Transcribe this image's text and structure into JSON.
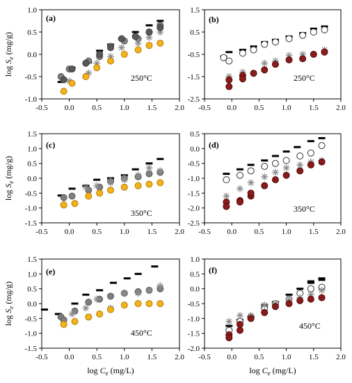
{
  "chart_data": [
    {
      "panel": "(a)",
      "type": "scatter",
      "annotation": "250°C",
      "xlim": [
        -0.5,
        2.0
      ],
      "ylim": [
        -1.0,
        1.0
      ],
      "xticks": [
        "-0.5",
        "0.0",
        "0.5",
        "1.0",
        "1.5",
        "2.0"
      ],
      "yticks": [
        "-1.0",
        "-0.5",
        "0.0",
        "0.5",
        "1.0"
      ],
      "xlabel": "",
      "ylabel": "log Se (mg/g)",
      "series": [
        {
          "marker": "dash",
          "x": [
            -0.15,
            0.05,
            0.35,
            0.55,
            0.75,
            0.95,
            1.2,
            1.45,
            1.65
          ],
          "y": [
            -0.62,
            -0.3,
            -0.18,
            0.08,
            0.22,
            0.35,
            0.5,
            0.65,
            0.75
          ]
        },
        {
          "marker": "gray",
          "x": [
            -0.15,
            0.0,
            0.35,
            0.55,
            0.75,
            1.0,
            1.25,
            1.45,
            1.65
          ],
          "y": [
            -0.5,
            -0.33,
            -0.15,
            -0.05,
            0.18,
            0.3,
            0.35,
            0.5,
            0.65
          ]
        },
        {
          "marker": "star",
          "x": [
            0.0,
            0.35,
            0.5,
            0.75,
            0.95,
            1.25,
            1.45,
            1.65
          ],
          "y": [
            -0.6,
            -0.42,
            -0.2,
            -0.05,
            0.15,
            0.25,
            0.38,
            0.5
          ]
        },
        {
          "marker": "dark",
          "x": [
            -0.1,
            0.05,
            0.3,
            0.55,
            0.75,
            0.95,
            1.2,
            1.45,
            1.65
          ],
          "y": [
            -0.57,
            -0.33,
            -0.2,
            0.0,
            0.15,
            0.35,
            0.4,
            0.5,
            0.6
          ]
        },
        {
          "marker": "yellow",
          "x": [
            -0.1,
            0.05,
            0.3,
            0.5,
            0.75,
            1.0,
            1.25,
            1.45,
            1.65
          ],
          "y": [
            -0.83,
            -0.65,
            -0.5,
            -0.3,
            -0.15,
            0.0,
            0.1,
            0.2,
            0.25
          ]
        }
      ]
    },
    {
      "panel": "(b)",
      "type": "scatter",
      "annotation": "250°C",
      "xlim": [
        -0.5,
        2.0
      ],
      "ylim": [
        -2.5,
        1.5
      ],
      "xticks": [
        "-0.5",
        "0.0",
        "0.5",
        "1.0",
        "1.5",
        "2.0"
      ],
      "yticks": [
        "-2.5",
        "-1.5",
        "-0.5",
        "0.5",
        "1.5"
      ],
      "xlabel": "",
      "ylabel": "",
      "series": [
        {
          "marker": "dash",
          "x": [
            -0.15,
            -0.05,
            0.2,
            0.4,
            0.6,
            0.8,
            1.05,
            1.3,
            1.5,
            1.7
          ],
          "y": [
            -0.6,
            -0.4,
            -0.3,
            -0.15,
            0.05,
            0.15,
            0.3,
            0.45,
            0.65,
            0.75
          ]
        },
        {
          "marker": "open",
          "x": [
            -0.15,
            -0.05,
            0.2,
            0.4,
            0.6,
            0.8,
            1.05,
            1.3,
            1.5,
            1.7
          ],
          "y": [
            -0.65,
            -0.8,
            -0.45,
            -0.3,
            -0.05,
            0.05,
            0.2,
            0.35,
            0.5,
            0.6
          ]
        },
        {
          "marker": "star",
          "x": [
            -0.05,
            0.2,
            0.6,
            0.8,
            1.05,
            1.3,
            1.7
          ],
          "y": [
            -1.5,
            -1.3,
            -0.9,
            -0.8,
            -0.55,
            -0.5,
            -0.3
          ]
        },
        {
          "marker": "red",
          "x": [
            -0.05,
            -0.05,
            0.2,
            0.2,
            0.4,
            0.6,
            0.8,
            1.05,
            1.3,
            1.5,
            1.7
          ],
          "y": [
            -1.65,
            -1.95,
            -1.45,
            -1.6,
            -1.35,
            -1.2,
            -0.95,
            -0.75,
            -0.7,
            -0.5,
            -0.4
          ]
        }
      ]
    },
    {
      "panel": "(c)",
      "type": "scatter",
      "annotation": "350°C",
      "xlim": [
        -0.5,
        2.0
      ],
      "ylim": [
        -1.5,
        1.5
      ],
      "xticks": [
        "-0.5",
        "0.0",
        "0.5",
        "1.0",
        "1.5",
        "2.0"
      ],
      "yticks": [
        "-1.5",
        "-1.0",
        "-0.5",
        "0.0",
        "0.5",
        "1.0",
        "1.5"
      ],
      "xlabel": "",
      "ylabel": "log Se (mg/g)",
      "series": [
        {
          "marker": "dash",
          "x": [
            -0.15,
            0.05,
            0.3,
            0.5,
            0.75,
            1.0,
            1.2,
            1.45,
            1.65
          ],
          "y": [
            -0.58,
            -0.35,
            -0.25,
            -0.05,
            0.0,
            0.1,
            0.3,
            0.5,
            0.65
          ]
        },
        {
          "marker": "gray",
          "x": [
            -0.1,
            0.05,
            0.35,
            0.55,
            0.75,
            1.0,
            1.25,
            1.45,
            1.65
          ],
          "y": [
            -0.65,
            -0.6,
            -0.4,
            -0.3,
            -0.1,
            0.0,
            0.05,
            0.15,
            0.2
          ]
        },
        {
          "marker": "star",
          "x": [
            -0.1,
            0.3,
            0.5,
            0.75,
            1.0,
            1.25,
            1.45,
            1.65
          ],
          "y": [
            -0.9,
            -0.3,
            -0.25,
            -0.15,
            -0.05,
            0.1,
            0.35,
            0.25
          ]
        },
        {
          "marker": "yellow",
          "x": [
            -0.1,
            0.1,
            0.35,
            0.55,
            0.75,
            1.0,
            1.25,
            1.45,
            1.65
          ],
          "y": [
            -0.9,
            -0.85,
            -0.6,
            -0.5,
            -0.4,
            -0.3,
            -0.25,
            -0.2,
            -0.15
          ]
        }
      ]
    },
    {
      "panel": "(d)",
      "type": "scatter",
      "annotation": "350°C",
      "xlim": [
        -0.5,
        2.0
      ],
      "ylim": [
        -2.5,
        0.5
      ],
      "xticks": [
        "-0.5",
        "0.0",
        "0.5",
        "1.0",
        "1.5",
        "2.0"
      ],
      "yticks": [
        "-2.5",
        "-2.0",
        "-1.5",
        "-1.0",
        "-0.5",
        "0.0",
        "0.5"
      ],
      "xlabel": "",
      "ylabel": "",
      "series": [
        {
          "marker": "dash",
          "x": [
            -0.1,
            0.15,
            0.35,
            0.6,
            0.8,
            1.0,
            1.2,
            1.45,
            1.65
          ],
          "y": [
            -0.85,
            -0.7,
            -0.55,
            -0.4,
            -0.25,
            -0.1,
            0.05,
            0.25,
            0.35
          ]
        },
        {
          "marker": "open",
          "x": [
            -0.1,
            0.15,
            0.35,
            0.6,
            0.8,
            1.0,
            1.25,
            1.45,
            1.65
          ],
          "y": [
            -1.05,
            -0.9,
            -0.75,
            -0.6,
            -0.5,
            -0.4,
            -0.25,
            -0.15,
            0.1
          ]
        },
        {
          "marker": "star",
          "x": [
            -0.1,
            0.15,
            0.35,
            0.6,
            0.8,
            1.0,
            1.25,
            1.45,
            1.65
          ],
          "y": [
            -1.6,
            -1.35,
            -1.15,
            -0.95,
            -0.8,
            -0.65,
            -0.55,
            -0.45,
            -0.4
          ]
        },
        {
          "marker": "red",
          "x": [
            -0.1,
            -0.1,
            0.15,
            0.15,
            0.35,
            0.35,
            0.6,
            0.8,
            1.0,
            1.25,
            1.45,
            1.65
          ],
          "y": [
            -1.8,
            -1.95,
            -1.75,
            -1.8,
            -1.6,
            -1.5,
            -1.25,
            -1.05,
            -0.9,
            -0.75,
            -0.55,
            -0.45
          ]
        }
      ]
    },
    {
      "panel": "(e)",
      "type": "scatter",
      "annotation": "450°C",
      "xlim": [
        -0.5,
        2.0
      ],
      "ylim": [
        -1.5,
        1.5
      ],
      "xticks": [
        "-0.5",
        "0.0",
        "0.5",
        "1.0",
        "1.5",
        "2.0"
      ],
      "yticks": [
        "-1.5",
        "-1.0",
        "-0.5",
        "0.0",
        "0.5",
        "1.0",
        "1.5"
      ],
      "xlabel": "log Ce (mg/L)",
      "ylabel": "log Se (mg/g)",
      "series": [
        {
          "marker": "dash",
          "x": [
            -0.45,
            -0.2,
            0.1,
            0.3,
            0.55,
            0.8,
            1.05,
            1.25,
            1.55
          ],
          "y": [
            -0.2,
            -0.35,
            0.0,
            0.3,
            0.45,
            0.7,
            0.85,
            1.0,
            1.25
          ]
        },
        {
          "marker": "gray",
          "x": [
            -0.15,
            -0.1,
            0.1,
            0.35,
            0.55,
            0.75,
            1.0,
            1.25,
            1.45,
            1.65
          ],
          "y": [
            -0.45,
            -0.55,
            -0.25,
            0.05,
            0.15,
            0.25,
            0.35,
            0.4,
            0.45,
            0.5
          ]
        },
        {
          "marker": "star",
          "x": [
            0.05,
            0.3,
            0.5,
            0.75,
            1.0,
            1.25,
            1.45,
            1.65
          ],
          "y": [
            -0.35,
            -0.15,
            0.15,
            -0.15,
            0.35,
            0.35,
            0.45,
            0.6
          ]
        },
        {
          "marker": "yellow",
          "x": [
            -0.1,
            0.1,
            0.35,
            0.55,
            0.75,
            1.0,
            1.25,
            1.45,
            1.65
          ],
          "y": [
            -0.7,
            -0.6,
            -0.45,
            -0.35,
            -0.2,
            -0.05,
            0.0,
            0.0,
            0.0
          ]
        }
      ]
    },
    {
      "panel": "(f)",
      "type": "scatter",
      "annotation": "450°C",
      "xlim": [
        -0.5,
        2.0
      ],
      "ylim": [
        -2.0,
        1.0
      ],
      "xticks": [
        "-0.5",
        "0.0",
        "0.5",
        "1.0",
        "1.5",
        "2.0"
      ],
      "yticks": [
        "-2.0",
        "-1.5",
        "-1.0",
        "-0.5",
        "0.0",
        "0.5",
        "1.0"
      ],
      "xlabel": "log Ce (mg/L)",
      "ylabel": "",
      "series": [
        {
          "marker": "dash",
          "x": [
            -0.05,
            0.15,
            0.35,
            0.6,
            0.8,
            1.05,
            1.25,
            1.45,
            1.45,
            1.65,
            1.65
          ],
          "y": [
            -1.25,
            -1.05,
            -0.95,
            -0.55,
            -0.45,
            -0.2,
            0.0,
            0.2,
            0.25,
            0.3,
            0.35
          ]
        },
        {
          "marker": "open",
          "x": [
            -0.05,
            0.15,
            0.35,
            0.6,
            0.8,
            1.05,
            1.25,
            1.45,
            1.65
          ],
          "y": [
            -1.4,
            -1.1,
            -0.95,
            -0.65,
            -0.5,
            -0.35,
            -0.15,
            0.0,
            0.05
          ]
        },
        {
          "marker": "star",
          "x": [
            -0.05,
            0.15,
            0.35,
            0.6,
            0.8,
            1.05,
            1.25,
            1.45,
            1.65
          ],
          "y": [
            -1.1,
            -0.9,
            -0.9,
            -0.55,
            -0.5,
            -0.35,
            -0.3,
            -0.2,
            -0.05
          ]
        },
        {
          "marker": "red",
          "x": [
            -0.05,
            -0.05,
            0.15,
            0.15,
            0.35,
            0.6,
            0.8,
            1.05,
            1.25,
            1.45,
            1.65
          ],
          "y": [
            -1.55,
            -1.65,
            -1.2,
            -1.4,
            -1.0,
            -0.8,
            -0.6,
            -0.5,
            -0.4,
            -0.35,
            -0.3
          ]
        }
      ]
    }
  ]
}
